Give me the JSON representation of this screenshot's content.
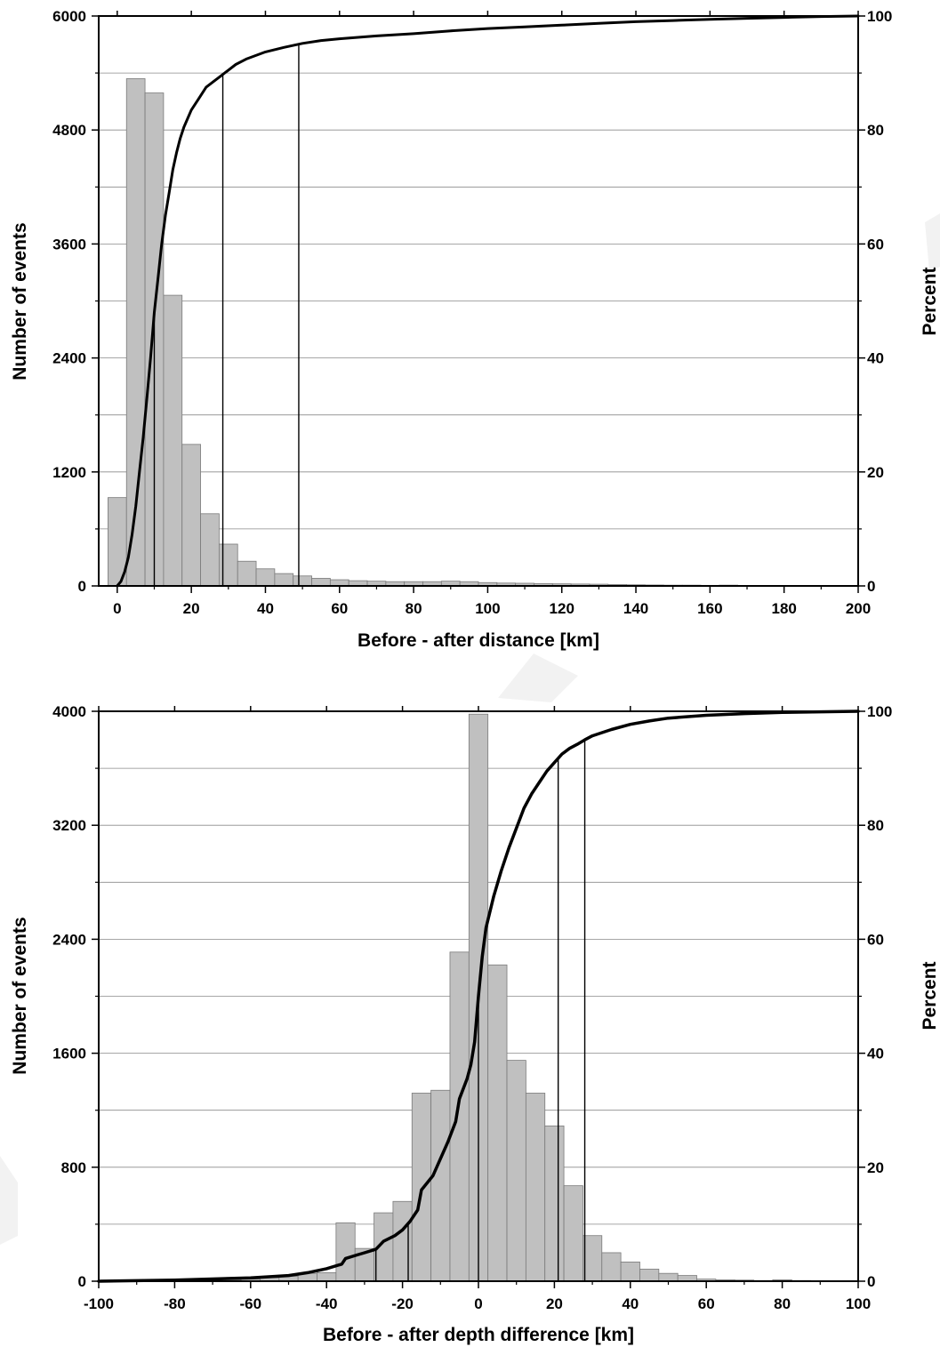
{
  "chart_data": [
    {
      "type": "bar",
      "xlabel": "Before - after distance [km]",
      "ylabel": "Number of events",
      "y2label": "Percent",
      "xlim": [
        -5,
        200
      ],
      "ylim": [
        0,
        6000
      ],
      "y2lim": [
        0,
        100
      ],
      "xticks": [
        0,
        20,
        40,
        60,
        80,
        100,
        120,
        140,
        160,
        180,
        200
      ],
      "xtick_labels": [
        "0",
        "20",
        "40",
        "60",
        "80",
        "100",
        "120",
        "140",
        "160",
        "180",
        "200"
      ],
      "yticks": [
        0,
        1200,
        2400,
        3600,
        4800,
        6000
      ],
      "ytick_labels": [
        "0",
        "1200",
        "2400",
        "3600",
        "4800",
        "6000"
      ],
      "y2ticks": [
        0,
        20,
        40,
        60,
        80,
        100
      ],
      "y2tick_labels": [
        "0",
        "20",
        "40",
        "60",
        "80",
        "100"
      ],
      "grid": "horizontal",
      "histogram": {
        "bin_width": 5,
        "bin_starts": [
          -2.5,
          2.5,
          7.5,
          12.5,
          17.5,
          22.5,
          27.5,
          32.5,
          37.5,
          42.5,
          47.5,
          52.5,
          57.5,
          62.5,
          67.5,
          72.5,
          77.5,
          82.5,
          87.5,
          92.5,
          97.5,
          102.5,
          107.5,
          112.5,
          117.5,
          122.5,
          127.5,
          132.5,
          137.5,
          142.5,
          147.5,
          152.5,
          157.5,
          162.5
        ],
        "counts": [
          930,
          5340,
          5190,
          3060,
          1490,
          760,
          440,
          260,
          180,
          130,
          105,
          80,
          65,
          55,
          50,
          45,
          45,
          45,
          50,
          45,
          35,
          30,
          28,
          25,
          22,
          20,
          18,
          15,
          12,
          10,
          8,
          8,
          6,
          8
        ]
      },
      "cumulative_percent": {
        "x": [
          0,
          1,
          2,
          3,
          4,
          5,
          6,
          7,
          8,
          9,
          10,
          11,
          12,
          13,
          14,
          15,
          16,
          17,
          18,
          20,
          22,
          24,
          26,
          28,
          30,
          32,
          35,
          40,
          45,
          50,
          55,
          60,
          70,
          80,
          90,
          100,
          110,
          120,
          130,
          140,
          150,
          160,
          170,
          180,
          190,
          200
        ],
        "y": [
          0,
          0.8,
          2.5,
          5,
          9,
          14,
          20,
          26,
          33,
          40,
          48,
          54,
          60,
          65,
          69,
          73,
          76,
          78.5,
          80.5,
          83.5,
          85.5,
          87.5,
          88.5,
          89.5,
          90.5,
          91.5,
          92.5,
          93.7,
          94.5,
          95.2,
          95.7,
          96,
          96.5,
          96.9,
          97.4,
          97.8,
          98.1,
          98.4,
          98.7,
          99,
          99.2,
          99.4,
          99.6,
          99.75,
          99.9,
          100
        ]
      },
      "percentile_lines": [
        10,
        28.5,
        49
      ]
    },
    {
      "type": "bar",
      "xlabel": "Before - after depth difference [km]",
      "ylabel": "Number of events",
      "y2label": "Percent",
      "xlim": [
        -100,
        100
      ],
      "ylim": [
        0,
        4000
      ],
      "y2lim": [
        0,
        100
      ],
      "xticks": [
        -100,
        -80,
        -60,
        -40,
        -20,
        0,
        20,
        40,
        60,
        80,
        100
      ],
      "xtick_labels": [
        "-100",
        "-80",
        "-60",
        "-40",
        "-20",
        "0",
        "20",
        "40",
        "60",
        "80",
        "100"
      ],
      "yticks": [
        0,
        800,
        1600,
        2400,
        3200,
        4000
      ],
      "ytick_labels": [
        "0",
        "800",
        "1600",
        "2400",
        "3200",
        "4000"
      ],
      "y2ticks": [
        0,
        20,
        40,
        60,
        80,
        100
      ],
      "y2tick_labels": [
        "0",
        "20",
        "40",
        "60",
        "80",
        "100"
      ],
      "grid": "horizontal",
      "histogram": {
        "bin_width": 5,
        "bin_starts": [
          -82.5,
          -77.5,
          -72.5,
          -67.5,
          -62.5,
          -57.5,
          -52.5,
          -47.5,
          -42.5,
          -37.5,
          -32.5,
          -27.5,
          -22.5,
          -17.5,
          -12.5,
          -7.5,
          -2.5,
          2.5,
          7.5,
          12.5,
          17.5,
          22.5,
          27.5,
          32.5,
          37.5,
          42.5,
          47.5,
          52.5,
          57.5,
          62.5,
          67.5,
          72.5,
          77.5,
          82.5
        ],
        "counts": [
          5,
          5,
          8,
          10,
          15,
          25,
          35,
          55,
          60,
          410,
          230,
          480,
          560,
          1320,
          1340,
          2310,
          3980,
          2220,
          1550,
          1320,
          1090,
          670,
          320,
          200,
          135,
          85,
          55,
          40,
          15,
          10,
          8,
          5,
          10,
          5
        ]
      },
      "cumulative_percent": {
        "x": [
          -100,
          -80,
          -60,
          -50,
          -45,
          -40,
          -36,
          -35,
          -32,
          -30,
          -27,
          -25,
          -22,
          -20,
          -18,
          -16,
          -15,
          -12,
          -10,
          -8,
          -6,
          -5,
          -3,
          -2,
          -1,
          0,
          1,
          2,
          4,
          6,
          8,
          10,
          12,
          14,
          16,
          18,
          20,
          22,
          24,
          26,
          28,
          30,
          35,
          40,
          45,
          50,
          60,
          70,
          80,
          90,
          100
        ],
        "y": [
          0,
          0.2,
          0.6,
          1,
          1.5,
          2.2,
          3,
          4,
          4.6,
          5,
          5.6,
          7,
          8,
          9,
          10.5,
          12.5,
          16,
          18.5,
          21.5,
          24.5,
          28,
          32,
          35.5,
          38,
          42,
          50,
          57,
          62,
          67.5,
          72,
          76,
          79.5,
          83,
          85.5,
          87.5,
          89.5,
          91,
          92.5,
          93.5,
          94.2,
          95,
          95.7,
          96.8,
          97.7,
          98.3,
          98.8,
          99.3,
          99.6,
          99.8,
          99.9,
          100
        ]
      },
      "percentile_lines": [
        -27,
        -18.5,
        0,
        21,
        28
      ]
    }
  ]
}
